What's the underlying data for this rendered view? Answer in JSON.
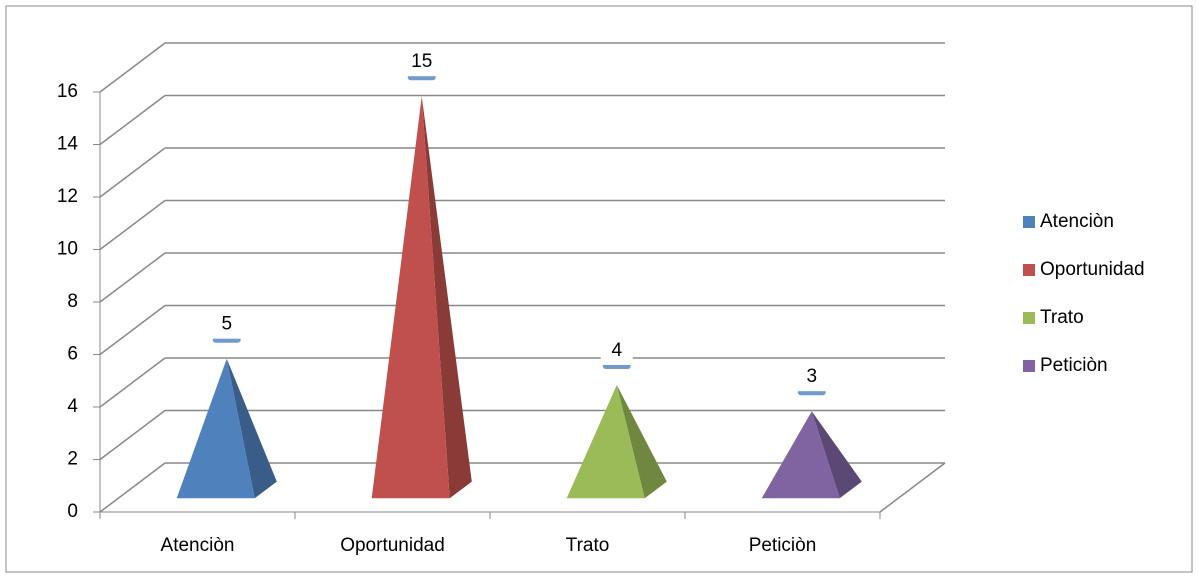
{
  "chart_data": {
    "type": "pyramid3d",
    "categories": [
      "Atenciòn",
      "Oportunidad",
      "Trato",
      "Peticiòn"
    ],
    "values": [
      5,
      15,
      4,
      3
    ],
    "colors": [
      "#4f81bd",
      "#c0504d",
      "#9bbb59",
      "#8064a2"
    ],
    "ylim": [
      0,
      16
    ],
    "yticks": [
      0,
      2,
      4,
      6,
      8,
      10,
      12,
      14,
      16
    ],
    "grid": true,
    "legend": "right"
  }
}
